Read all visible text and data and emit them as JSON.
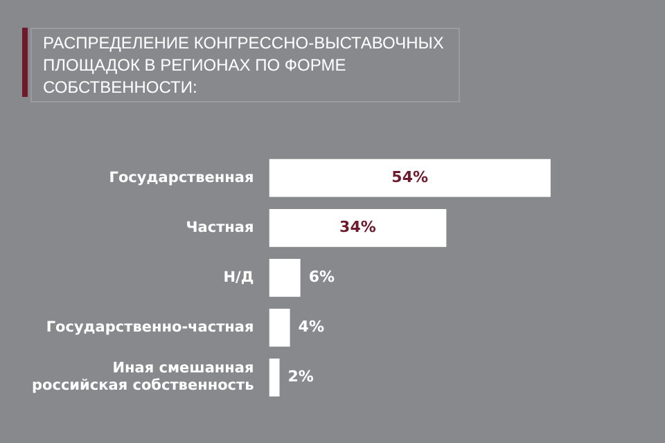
{
  "chart_data": {
    "type": "bar",
    "orientation": "horizontal",
    "title": "РАСПРЕДЕЛЕНИЕ КОНГРЕССНО-ВЫСТАВОЧНЫХ ПЛОЩАДОК В РЕГИОНАХ ПО ФОРМЕ СОБСТВЕННОСТИ:",
    "categories": [
      "Государственная",
      "Частная",
      "Н/Д",
      "Государственно-частная",
      "Иная смешанная российская собственность"
    ],
    "values": [
      54,
      34,
      6,
      4,
      2
    ],
    "value_labels": [
      "54%",
      "34%",
      "6%",
      "4%",
      "2%"
    ],
    "color": "#ffffff",
    "legend": false
  }
}
